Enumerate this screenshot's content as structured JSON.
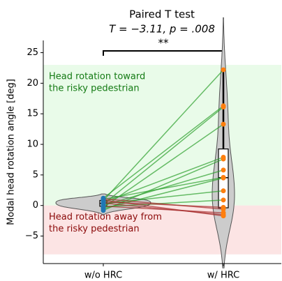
{
  "chart_data": {
    "type": "paired-violin",
    "title": [
      "Paired T test",
      "T = −3.11,  p = .008"
    ],
    "significance": "**",
    "y_label": "Modal head rotation angle [deg]",
    "categories": [
      "w/o HRC",
      "w/ HRC"
    ],
    "series": [
      {
        "name": "w/o HRC",
        "color": "#1f77b4",
        "values": [
          0.8,
          1.2,
          0.2,
          -0.3,
          0.5,
          -0.8,
          0.0,
          1.0,
          -0.5,
          0.3,
          -0.2,
          0.6,
          1.1,
          -0.1,
          0.4,
          0.9
        ]
      },
      {
        "name": "w/ HRC",
        "color": "#ff7f0e",
        "values": [
          22.2,
          16.3,
          16.1,
          13.3,
          7.9,
          7.6,
          5.8,
          4.6,
          4.5,
          2.4,
          0.9,
          -0.3,
          -0.6,
          -1.2,
          -1.5,
          -1.7
        ]
      }
    ],
    "increase_color": "#2ca02c",
    "decrease_color": "#a52a2a",
    "violin_color": "#cccccc",
    "regions": [
      {
        "from": 0,
        "to": 23,
        "color": "#e9fbe9",
        "text": [
          "Head rotation toward",
          "the risky pedestrian"
        ],
        "text_color": "#137a13"
      },
      {
        "from": -8,
        "to": 0,
        "color": "#fce4e4",
        "text": [
          "Head rotation away from",
          "the risky pedestrian"
        ],
        "text_color": "#8b0a0a"
      }
    ],
    "ylim": [
      -9.5,
      27
    ],
    "yticks": [
      {
        "value": -5,
        "label": "−5"
      },
      0,
      5,
      10,
      15,
      20,
      25
    ]
  }
}
